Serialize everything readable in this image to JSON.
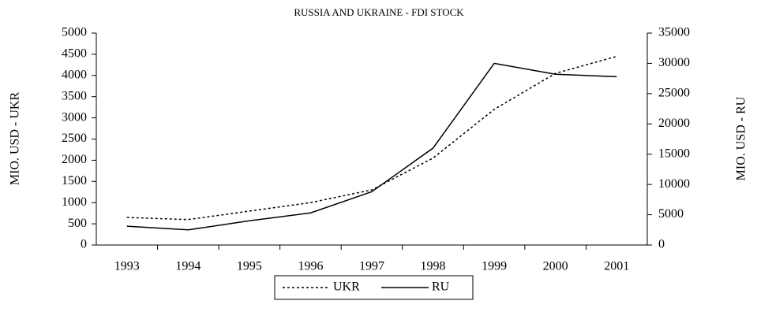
{
  "chart_data": {
    "type": "line",
    "title": "RUSSIA AND UKRAINE - FDI STOCK",
    "y_label": "MIO. USD - UKR",
    "y2_label": "MIO. USD - RU",
    "categories": [
      "1993",
      "1994",
      "1995",
      "1996",
      "1997",
      "1998",
      "1999",
      "2000",
      "2001"
    ],
    "series": [
      {
        "name": "UKR",
        "color": "#000000",
        "dash": "dotted",
        "values": [
          650,
          600,
          800,
          1000,
          1300,
          2050,
          3200,
          4050,
          4450
        ]
      },
      {
        "name": "RU",
        "color": "#000000",
        "dash": "solid",
        "axis": "y2",
        "values": [
          3100,
          2500,
          4000,
          5300,
          8800,
          16000,
          30000,
          28200,
          27800
        ]
      }
    ],
    "ylim": [
      0,
      5000
    ],
    "yticks": [
      0,
      500,
      1000,
      1500,
      2000,
      2500,
      3000,
      3500,
      4000,
      4500,
      5000
    ],
    "y2lim": [
      0,
      35000
    ],
    "y2ticks": [
      0,
      5000,
      10000,
      15000,
      20000,
      25000,
      30000,
      35000
    ],
    "legend": "bottom"
  }
}
